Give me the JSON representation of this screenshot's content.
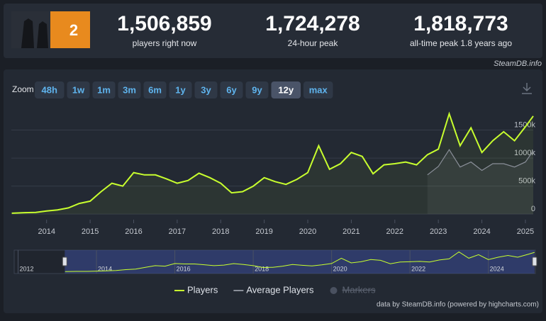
{
  "header": {
    "stats": [
      {
        "value": "1,506,859",
        "label": "players right now"
      },
      {
        "value": "1,724,278",
        "label": "24-hour peak"
      },
      {
        "value": "1,818,773",
        "label": "all-time peak 1.8 years ago"
      }
    ]
  },
  "source": "SteamDB.info",
  "zoom": {
    "label": "Zoom",
    "buttons": [
      "48h",
      "1w",
      "1m",
      "3m",
      "6m",
      "1y",
      "3y",
      "6y",
      "9y",
      "12y",
      "max"
    ],
    "selected": "12y"
  },
  "chart_data": {
    "type": "line",
    "x": [
      2013.2,
      2013.5,
      2013.75,
      2014,
      2014.25,
      2014.5,
      2014.75,
      2015,
      2015.25,
      2015.5,
      2015.75,
      2016,
      2016.25,
      2016.5,
      2016.75,
      2017,
      2017.25,
      2017.5,
      2017.75,
      2018,
      2018.25,
      2018.5,
      2018.75,
      2019,
      2019.25,
      2019.5,
      2019.75,
      2020,
      2020.25,
      2020.5,
      2020.75,
      2021,
      2021.25,
      2021.5,
      2021.75,
      2022,
      2022.25,
      2022.5,
      2022.75,
      2023,
      2023.25,
      2023.5,
      2023.75,
      2024,
      2024.25,
      2024.5,
      2024.75,
      2025,
      2025.18
    ],
    "series": [
      {
        "name": "Players",
        "color": "#c8ff2e",
        "values": [
          15000,
          25000,
          30000,
          55000,
          75000,
          110000,
          190000,
          230000,
          400000,
          550000,
          500000,
          740000,
          700000,
          700000,
          630000,
          550000,
          600000,
          730000,
          650000,
          550000,
          380000,
          400000,
          500000,
          650000,
          580000,
          530000,
          620000,
          740000,
          1220000,
          800000,
          900000,
          1100000,
          1030000,
          720000,
          880000,
          900000,
          930000,
          880000,
          1060000,
          1160000,
          1790000,
          1220000,
          1540000,
          1100000,
          1310000,
          1470000,
          1310000,
          1560000,
          1750000
        ]
      },
      {
        "name": "Average Players",
        "color": "#8a8f99",
        "values": [
          null,
          null,
          null,
          null,
          null,
          null,
          null,
          null,
          null,
          null,
          null,
          null,
          null,
          null,
          null,
          null,
          null,
          null,
          null,
          null,
          null,
          null,
          null,
          null,
          null,
          null,
          null,
          null,
          null,
          null,
          null,
          null,
          null,
          null,
          null,
          null,
          null,
          null,
          700000,
          850000,
          1150000,
          840000,
          930000,
          780000,
          900000,
          900000,
          840000,
          930000,
          1130000
        ]
      }
    ],
    "legend_hidden": [
      "Markers"
    ],
    "xlim": [
      2013.19,
      2025.18
    ],
    "xticks": [
      2014,
      2015,
      2016,
      2017,
      2018,
      2019,
      2020,
      2021,
      2022,
      2023,
      2024,
      2025
    ],
    "ylim": [
      -100000,
      1950000
    ],
    "yticks": [
      0,
      {
        "value": 500000,
        "label": "500k"
      },
      {
        "value": 1000000,
        "label": "1000k"
      },
      {
        "value": 1500000,
        "label": "1500k"
      }
    ],
    "grid": true
  },
  "navigator": {
    "xlim": [
      2011.9,
      2025.2
    ],
    "xticks": [
      2012,
      2014,
      2016,
      2018,
      2020,
      2022,
      2024
    ]
  },
  "credit": "data by SteamDB.info (powered by highcharts.com)"
}
